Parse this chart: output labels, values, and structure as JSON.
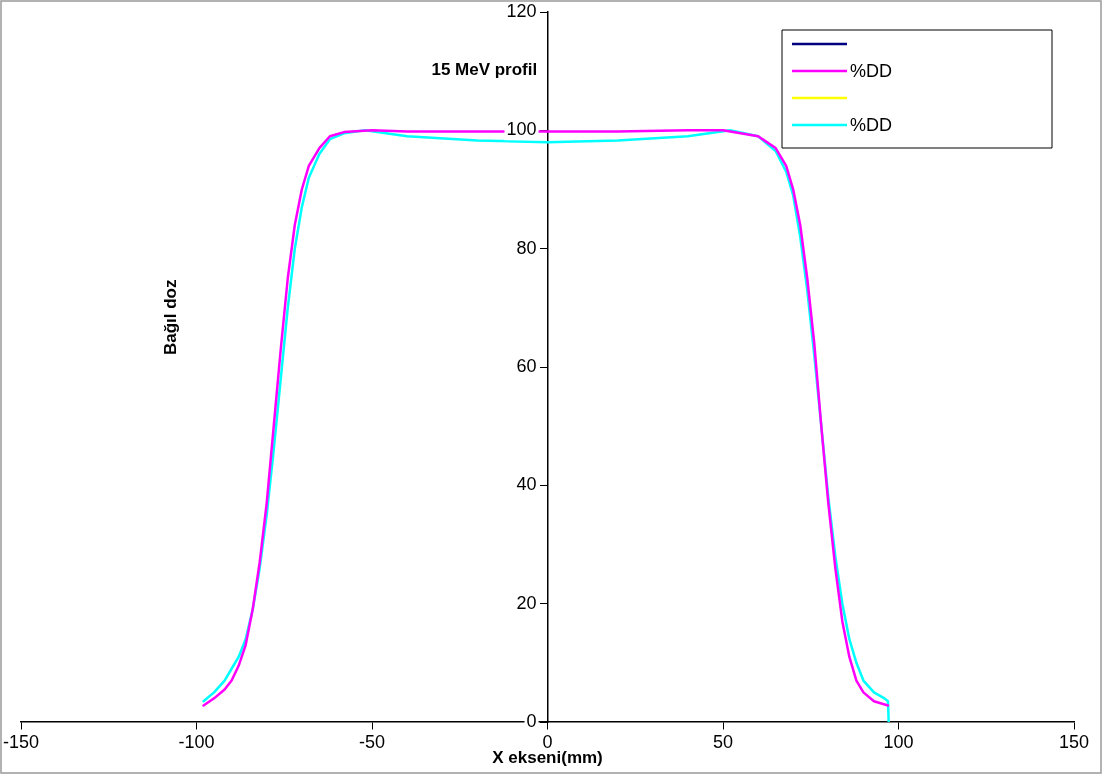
{
  "chart_data": {
    "type": "line",
    "title": "15 MeV profil",
    "xlabel": "X ekseni(mm)",
    "ylabel": "Bağıl doz",
    "xlim": [
      -150,
      150
    ],
    "xticks": [
      -150,
      -100,
      -50,
      0,
      50,
      100,
      150
    ],
    "ylim": [
      0,
      120
    ],
    "yticks": [
      0,
      20,
      40,
      60,
      80,
      100,
      120
    ],
    "grid": false,
    "legend": "top right",
    "marker": "none",
    "line_style": "solid",
    "series": [
      {
        "color": "#000080"
      },
      {
        "name": "%DD",
        "color": "#ff00ff",
        "x": [
          -98,
          -95,
          -92,
          -90,
          -88,
          -86,
          -84,
          -82,
          -80,
          -78,
          -76,
          -74,
          -72,
          -70,
          -68,
          -65,
          -62,
          -58,
          -50,
          -40,
          -20,
          0,
          20,
          40,
          50,
          60,
          65,
          68,
          70,
          72,
          74,
          76,
          78,
          80,
          82,
          84,
          86,
          88,
          90,
          93,
          97
        ],
        "values": [
          2.8,
          4,
          5.5,
          7,
          9.5,
          13,
          19,
          27,
          37,
          50,
          63,
          75,
          84,
          90,
          94,
          97,
          99,
          99.7,
          100,
          99.8,
          99.8,
          99.8,
          99.8,
          100,
          100,
          99,
          97,
          94,
          90,
          84,
          75,
          64,
          50,
          37,
          26,
          17,
          11,
          7,
          5,
          3.5,
          2.8
        ]
      },
      {
        "color": "#ffff00"
      },
      {
        "name": "%DD",
        "color": "#00ffff",
        "x": [
          -98,
          -95,
          -92,
          -90,
          -88,
          -86,
          -84,
          -82,
          -80,
          -78,
          -76,
          -74,
          -72,
          -70,
          -68,
          -65,
          -62,
          -58,
          -52,
          -40,
          -20,
          0,
          20,
          40,
          52,
          60,
          65,
          68,
          70,
          72,
          74,
          76,
          78,
          80,
          82,
          84,
          86,
          88,
          90,
          93,
          96,
          97,
          97.2
        ],
        "values": [
          3.5,
          5,
          7,
          9,
          11,
          14,
          19,
          26,
          35,
          46,
          58,
          70,
          80,
          87,
          92,
          96,
          98.5,
          99.5,
          100,
          99,
          98.3,
          98,
          98.3,
          99,
          100,
          99,
          96.5,
          93,
          89,
          82,
          73,
          62,
          50,
          38,
          28,
          20,
          14,
          10,
          7,
          5,
          4,
          3.5,
          0
        ]
      }
    ]
  }
}
